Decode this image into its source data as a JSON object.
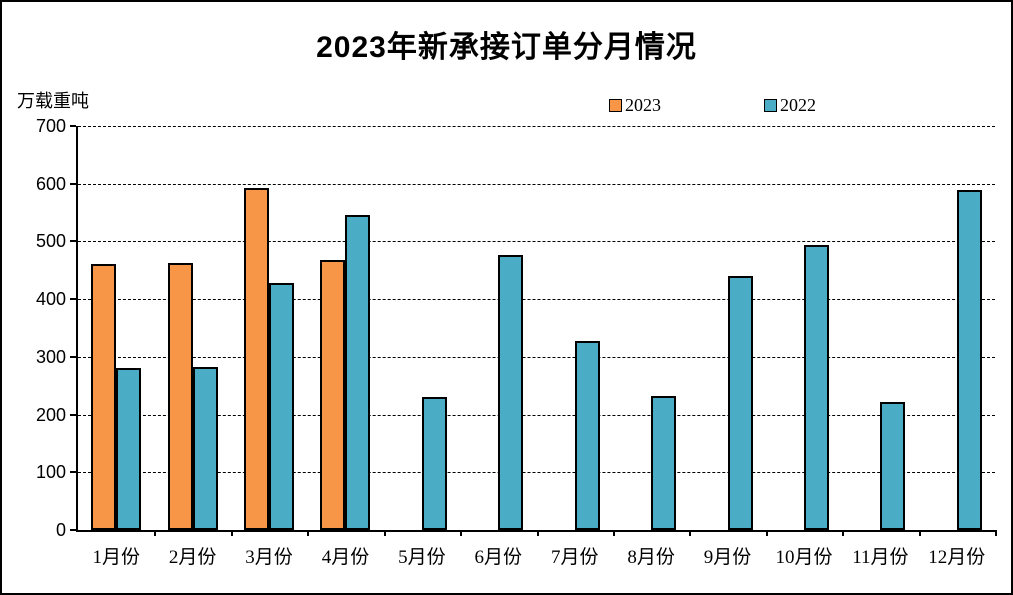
{
  "chart_data": {
    "type": "bar",
    "title": "2023年新承接订单分月情况",
    "ylabel": "万载重吨",
    "xlabel": "",
    "categories": [
      "1月份",
      "2月份",
      "3月份",
      "4月份",
      "5月份",
      "6月份",
      "7月份",
      "8月份",
      "9月份",
      "10月份",
      "11月份",
      "12月份"
    ],
    "series": [
      {
        "name": "2023",
        "color": "#F79646",
        "values": [
          461,
          463,
          593,
          467,
          null,
          null,
          null,
          null,
          null,
          null,
          null,
          null
        ]
      },
      {
        "name": "2022",
        "color": "#4BACC6",
        "values": [
          281,
          283,
          428,
          546,
          231,
          477,
          327,
          232,
          440,
          494,
          221,
          590
        ]
      }
    ],
    "ylim": [
      0,
      700
    ],
    "ytick_step": 100,
    "grid": "horizontal-dashed",
    "legend_position": "top-center",
    "bar_border_color": "#000000",
    "background_color": "#FFFFFF"
  }
}
